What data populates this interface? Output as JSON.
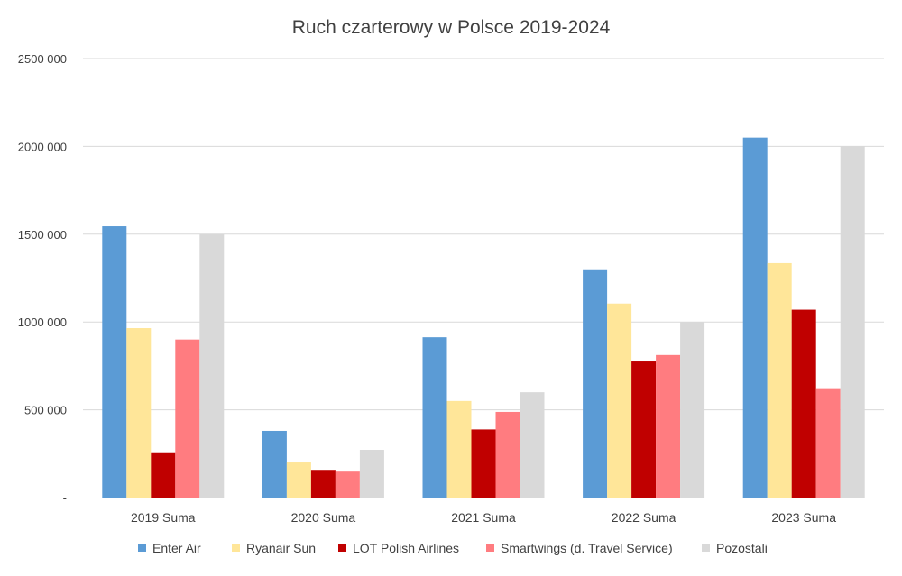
{
  "chart_data": {
    "type": "bar",
    "title": "Ruch czarterowy w Polsce 2019-2024",
    "xlabel": "",
    "ylabel": "",
    "categories": [
      "2019 Suma",
      "2020 Suma",
      "2021 Suma",
      "2022 Suma",
      "2023 Suma"
    ],
    "ylim": [
      0,
      2500000
    ],
    "yticks": [
      0,
      500000,
      1000000,
      1500000,
      2000000,
      2500000
    ],
    "ytick_labels": [
      "-",
      "500 000",
      "1000 000",
      "1500 000",
      "2000 000",
      "2500 000"
    ],
    "grid": true,
    "legend_position": "bottom",
    "series": [
      {
        "name": "Enter Air",
        "color": "#5b9bd5",
        "values": [
          1545000,
          380000,
          913000,
          1300000,
          2050000
        ]
      },
      {
        "name": "Ryanair Sun",
        "color": "#ffe699",
        "values": [
          965000,
          200000,
          550000,
          1105000,
          1335000
        ]
      },
      {
        "name": "LOT Polish Airlines",
        "color": "#c00000",
        "values": [
          258000,
          158000,
          388000,
          775000,
          1070000
        ]
      },
      {
        "name": "Smartwings (d. Travel Service)",
        "color": "#ff7c80",
        "values": [
          900000,
          148000,
          488000,
          812000,
          623000
        ]
      },
      {
        "name": "Pozostali",
        "color": "#d9d9d9",
        "values": [
          1500000,
          272000,
          600000,
          1000000,
          2000000
        ]
      }
    ]
  }
}
